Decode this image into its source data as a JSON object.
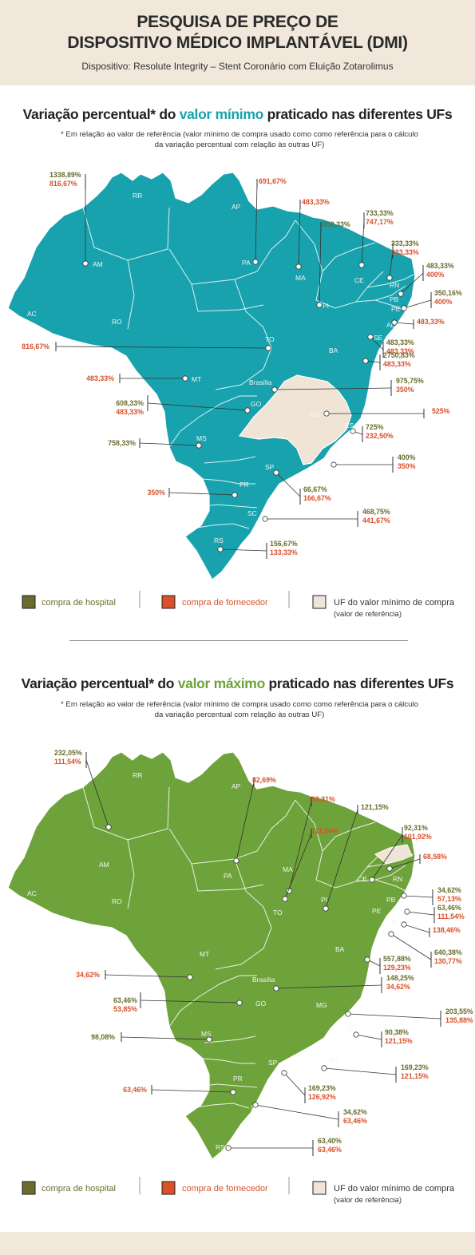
{
  "header": {
    "line1": "PESQUISA DE PREÇO DE",
    "line2": "DISPOSITIVO MÉDICO IMPLANTÁVEL (DMI)",
    "subtitle": "Dispositivo: Resolute Integrity – Stent Coronário com Eluição Zotarolimus"
  },
  "colors": {
    "header_bg": "#f1e7da",
    "map_min": "#17a2ad",
    "map_max": "#6ea23b",
    "reference_uf": "#efe4d6",
    "hospital": "#6b6b2d",
    "fornecedor": "#d9502a",
    "hospital_text": "#6b6b2d",
    "fornecedor_text": "#d9502a"
  },
  "section_min": {
    "title_pre": "Variação percentual* do ",
    "title_highlight": "valor mínimo",
    "title_post": " praticado nas diferentes UFs",
    "footnote_line1": "* Em relação ao valor de referência (valor mínimo de compra usado como como referência para o cálculo",
    "footnote_line2": "da variação percentual com relação às outras UF)"
  },
  "section_max": {
    "title_pre": "Variação percentual* do ",
    "title_highlight": "valor máximo",
    "title_post": " praticado nas diferentes UFs",
    "footnote_line1": "* Em relação ao valor de referência (valor mínimo de compra usado como como referência para o cálculo",
    "footnote_line2": "da variação percentual com relação às outras UF)"
  },
  "legend": {
    "hospital": "compra de hospital",
    "fornecedor": "compra de fornecedor",
    "reference_line1": "UF do valor mínimo de compra",
    "reference_line2": "(valor de referência)"
  },
  "chart_data": [
    {
      "type": "map",
      "title": "Variação percentual* do valor mínimo praticado nas diferentes UFs",
      "reference_uf": "MG",
      "series_names": [
        "compra de hospital",
        "compra de fornecedor"
      ],
      "states_shown": [
        "RR",
        "AP",
        "AC",
        "RO",
        "AM",
        "PA",
        "MA",
        "CE",
        "RN",
        "PB",
        "PE",
        "AL",
        "SE",
        "PI",
        "TO",
        "BA",
        "MT",
        "Brasília",
        "GO",
        "MG",
        "ES",
        "MS",
        "RJ",
        "SP",
        "PR",
        "SC",
        "RS"
      ],
      "values": [
        {
          "uf": "AM",
          "hospital": "1338,89%",
          "fornecedor": "816,67%"
        },
        {
          "uf": "PA",
          "fornecedor": "691,67%"
        },
        {
          "uf": "MA",
          "fornecedor": "483,33%"
        },
        {
          "uf": "PI",
          "hospital": "858,33%"
        },
        {
          "uf": "CE",
          "hospital": "733,33%",
          "fornecedor": "747,17%"
        },
        {
          "uf": "RN",
          "hospital": "333,33%",
          "fornecedor": "333,33%"
        },
        {
          "uf": "PB",
          "hospital": "483,33%",
          "fornecedor": "400%"
        },
        {
          "uf": "PE",
          "hospital": "350,16%",
          "fornecedor": "400%"
        },
        {
          "uf": "AL",
          "fornecedor": "483,33%"
        },
        {
          "uf": "SE",
          "hospital": "483,33%",
          "fornecedor": "483,33%"
        },
        {
          "uf": "TO",
          "fornecedor": "816,67%"
        },
        {
          "uf": "BA",
          "hospital": "2750,83%",
          "fornecedor": "483,33%"
        },
        {
          "uf": "MT",
          "fornecedor": "483,33%"
        },
        {
          "uf": "Brasília",
          "hospital": "975,75%",
          "fornecedor": "350%"
        },
        {
          "uf": "GO",
          "hospital": "608,33%",
          "fornecedor": "483,33%"
        },
        {
          "uf": "MG",
          "fornecedor": "525%"
        },
        {
          "uf": "ES",
          "hospital": "725%",
          "fornecedor": "232,50%"
        },
        {
          "uf": "MS",
          "hospital": "758,33%"
        },
        {
          "uf": "RJ",
          "hospital": "400%",
          "fornecedor": "350%"
        },
        {
          "uf": "SP",
          "hospital": "66,67%",
          "fornecedor": "166,67%"
        },
        {
          "uf": "PR",
          "fornecedor": "350%"
        },
        {
          "uf": "SC",
          "hospital": "468,75%",
          "fornecedor": "441,67%"
        },
        {
          "uf": "RS",
          "hospital": "156,67%",
          "fornecedor": "133,33%"
        }
      ]
    },
    {
      "type": "map",
      "title": "Variação percentual* do valor máximo praticado nas diferentes UFs",
      "reference_uf": "RN",
      "series_names": [
        "compra de hospital",
        "compra de fornecedor"
      ],
      "states_shown": [
        "RR",
        "AP",
        "AM",
        "AC",
        "PA",
        "MA",
        "CE",
        "RN",
        "PB",
        "PE",
        "AL",
        "SE",
        "PI",
        "TO",
        "RO",
        "MT",
        "BA",
        "Brasília",
        "GO",
        "MG",
        "ES",
        "MS",
        "RJ",
        "SP",
        "PR",
        "SC",
        "RS"
      ],
      "values": [
        {
          "uf": "AM",
          "hospital": "232,05%",
          "fornecedor": "111,54%"
        },
        {
          "uf": "PA",
          "fornecedor": "82,69%"
        },
        {
          "uf": "MA",
          "fornecedor": "92,31%"
        },
        {
          "uf": "TO",
          "fornecedor": "111,54%"
        },
        {
          "uf": "PI",
          "hospital": "121,15%"
        },
        {
          "uf": "CE",
          "hospital": "92,31%",
          "fornecedor": "101,92%"
        },
        {
          "uf": "RN",
          "fornecedor": "68,58%"
        },
        {
          "uf": "PB",
          "hospital": "34,62%",
          "fornecedor": "57,13%"
        },
        {
          "uf": "PE",
          "hospital": "63,46%",
          "fornecedor": "111,54%"
        },
        {
          "uf": "AL",
          "fornecedor": "138,46%"
        },
        {
          "uf": "SE",
          "hospital": "640,38%",
          "fornecedor": "130,77%"
        },
        {
          "uf": "BA",
          "hospital": "557,88%",
          "fornecedor": "129,23%"
        },
        {
          "uf": "MT",
          "fornecedor": "34,62%"
        },
        {
          "uf": "Brasília",
          "hospital": "148,25%",
          "fornecedor": "34,62%"
        },
        {
          "uf": "GO",
          "hospital": "63,46%",
          "fornecedor": "53,85%"
        },
        {
          "uf": "MG",
          "hospital": "203,55%",
          "fornecedor": "135,88%"
        },
        {
          "uf": "ES",
          "hospital": "90,38%",
          "fornecedor": "121,15%"
        },
        {
          "uf": "MS",
          "hospital": "98,08%"
        },
        {
          "uf": "RJ",
          "hospital": "169,23%",
          "fornecedor": "121,15%"
        },
        {
          "uf": "SP",
          "hospital": "169,23%",
          "fornecedor": "126,92%"
        },
        {
          "uf": "PR",
          "fornecedor": "63,46%"
        },
        {
          "uf": "SC",
          "hospital": "34,62%",
          "fornecedor": "63,46%"
        },
        {
          "uf": "RS",
          "hospital": "63,40%",
          "fornecedor": "63,46%"
        }
      ]
    }
  ]
}
